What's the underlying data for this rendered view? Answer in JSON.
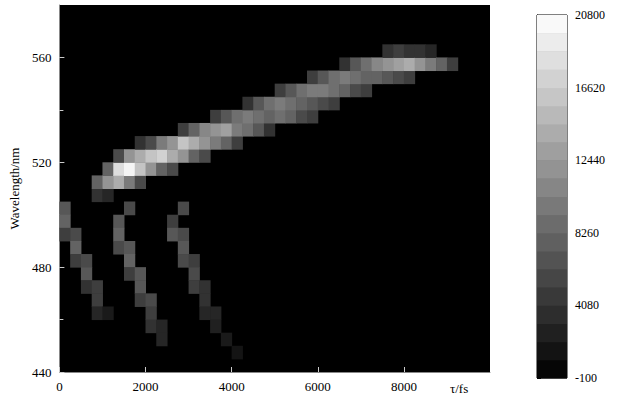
{
  "chart_data": {
    "type": "heatmap",
    "x_label": "τ/fs",
    "y_label": "Wavelength/nm",
    "xlim": [
      0,
      10000
    ],
    "ylim": [
      440,
      580
    ],
    "xticks": [
      0,
      2000,
      4000,
      6000,
      8000
    ],
    "yticks": [
      440,
      480,
      520,
      560
    ],
    "x_step": 250,
    "y_step": 5,
    "cells": [
      [
        750,
        505,
        4000
      ],
      [
        750,
        510,
        8000
      ],
      [
        1000,
        505,
        3000
      ],
      [
        1000,
        510,
        12000
      ],
      [
        1000,
        515,
        8000
      ],
      [
        1250,
        510,
        14000
      ],
      [
        1250,
        515,
        18000
      ],
      [
        1250,
        520,
        6000
      ],
      [
        1500,
        510,
        10000
      ],
      [
        1500,
        515,
        20000
      ],
      [
        1500,
        520,
        12000
      ],
      [
        1750,
        510,
        6000
      ],
      [
        1750,
        515,
        16000
      ],
      [
        1750,
        520,
        14000
      ],
      [
        1750,
        525,
        4000
      ],
      [
        2000,
        515,
        12000
      ],
      [
        2000,
        520,
        16000
      ],
      [
        2000,
        525,
        6000
      ],
      [
        2250,
        515,
        8000
      ],
      [
        2250,
        520,
        17000
      ],
      [
        2250,
        525,
        10000
      ],
      [
        2500,
        515,
        6000
      ],
      [
        2500,
        520,
        14000
      ],
      [
        2500,
        525,
        12000
      ],
      [
        2750,
        520,
        12000
      ],
      [
        2750,
        525,
        16000
      ],
      [
        2750,
        530,
        5000
      ],
      [
        3000,
        520,
        8000
      ],
      [
        3000,
        525,
        14000
      ],
      [
        3000,
        530,
        8000
      ],
      [
        3250,
        520,
        6000
      ],
      [
        3250,
        525,
        12000
      ],
      [
        3250,
        530,
        11000
      ],
      [
        3500,
        525,
        10000
      ],
      [
        3500,
        530,
        12000
      ],
      [
        3500,
        535,
        5000
      ],
      [
        3750,
        525,
        8000
      ],
      [
        3750,
        530,
        13000
      ],
      [
        3750,
        535,
        7000
      ],
      [
        4000,
        525,
        5000
      ],
      [
        4000,
        530,
        10000
      ],
      [
        4000,
        535,
        9000
      ],
      [
        4250,
        530,
        9000
      ],
      [
        4250,
        535,
        10000
      ],
      [
        4250,
        540,
        4000
      ],
      [
        4500,
        530,
        7000
      ],
      [
        4500,
        535,
        9000
      ],
      [
        4500,
        540,
        7000
      ],
      [
        4750,
        530,
        4000
      ],
      [
        4750,
        535,
        8000
      ],
      [
        4750,
        540,
        9000
      ],
      [
        5000,
        535,
        9000
      ],
      [
        5000,
        540,
        10000
      ],
      [
        5000,
        545,
        5000
      ],
      [
        5250,
        535,
        8000
      ],
      [
        5250,
        540,
        9000
      ],
      [
        5250,
        545,
        7000
      ],
      [
        5500,
        535,
        6000
      ],
      [
        5500,
        540,
        8000
      ],
      [
        5500,
        545,
        9000
      ],
      [
        5750,
        535,
        5000
      ],
      [
        5750,
        540,
        7000
      ],
      [
        5750,
        545,
        10000
      ],
      [
        5750,
        550,
        5000
      ],
      [
        6000,
        540,
        6000
      ],
      [
        6000,
        545,
        10000
      ],
      [
        6000,
        550,
        7000
      ],
      [
        6250,
        540,
        5000
      ],
      [
        6250,
        545,
        9000
      ],
      [
        6250,
        550,
        9000
      ],
      [
        6500,
        545,
        8000
      ],
      [
        6500,
        550,
        10000
      ],
      [
        6500,
        555,
        4000
      ],
      [
        6750,
        545,
        6000
      ],
      [
        6750,
        550,
        9000
      ],
      [
        6750,
        555,
        7000
      ],
      [
        7000,
        545,
        5000
      ],
      [
        7000,
        550,
        8000
      ],
      [
        7000,
        555,
        9000
      ],
      [
        7250,
        550,
        8000
      ],
      [
        7250,
        555,
        11000
      ],
      [
        7500,
        550,
        7000
      ],
      [
        7500,
        555,
        12000
      ],
      [
        7500,
        560,
        4000
      ],
      [
        7750,
        550,
        6000
      ],
      [
        7750,
        555,
        13000
      ],
      [
        7750,
        560,
        5000
      ],
      [
        8000,
        550,
        5000
      ],
      [
        8000,
        555,
        14000
      ],
      [
        8000,
        560,
        4000
      ],
      [
        8250,
        555,
        12000
      ],
      [
        8250,
        560,
        4000
      ],
      [
        8500,
        555,
        10000
      ],
      [
        8500,
        560,
        3000
      ],
      [
        8750,
        555,
        8000
      ],
      [
        9000,
        555,
        5000
      ],
      [
        0,
        500,
        7000
      ],
      [
        0,
        495,
        8000
      ],
      [
        0,
        490,
        5000
      ],
      [
        250,
        490,
        6000
      ],
      [
        250,
        485,
        8000
      ],
      [
        250,
        480,
        5000
      ],
      [
        500,
        480,
        6000
      ],
      [
        500,
        475,
        7000
      ],
      [
        500,
        470,
        4000
      ],
      [
        750,
        470,
        5000
      ],
      [
        750,
        465,
        5000
      ],
      [
        750,
        460,
        3000
      ],
      [
        1000,
        460,
        2000
      ],
      [
        1500,
        500,
        6000
      ],
      [
        1250,
        495,
        7000
      ],
      [
        1250,
        490,
        8000
      ],
      [
        1250,
        485,
        6000
      ],
      [
        1500,
        485,
        7000
      ],
      [
        1500,
        480,
        8000
      ],
      [
        1500,
        475,
        5000
      ],
      [
        1750,
        475,
        7000
      ],
      [
        1750,
        470,
        7000
      ],
      [
        1750,
        465,
        5000
      ],
      [
        2000,
        465,
        6000
      ],
      [
        2000,
        460,
        5000
      ],
      [
        2000,
        455,
        4000
      ],
      [
        2250,
        455,
        3000
      ],
      [
        2250,
        450,
        3000
      ],
      [
        2750,
        500,
        6000
      ],
      [
        2500,
        495,
        5000
      ],
      [
        2500,
        490,
        7000
      ],
      [
        2750,
        490,
        6000
      ],
      [
        2750,
        485,
        7000
      ],
      [
        2750,
        480,
        6000
      ],
      [
        3000,
        480,
        5000
      ],
      [
        3000,
        475,
        6000
      ],
      [
        3000,
        470,
        5000
      ],
      [
        3250,
        470,
        4000
      ],
      [
        3250,
        465,
        4000
      ],
      [
        3250,
        460,
        3000
      ],
      [
        3500,
        460,
        3000
      ],
      [
        3500,
        455,
        2500
      ],
      [
        3750,
        450,
        2000
      ],
      [
        4000,
        445,
        1500
      ]
    ],
    "colorbar": {
      "range": [
        -100,
        20800
      ],
      "ticks": [
        -100,
        4080,
        8260,
        12440,
        16620,
        20800
      ]
    }
  }
}
